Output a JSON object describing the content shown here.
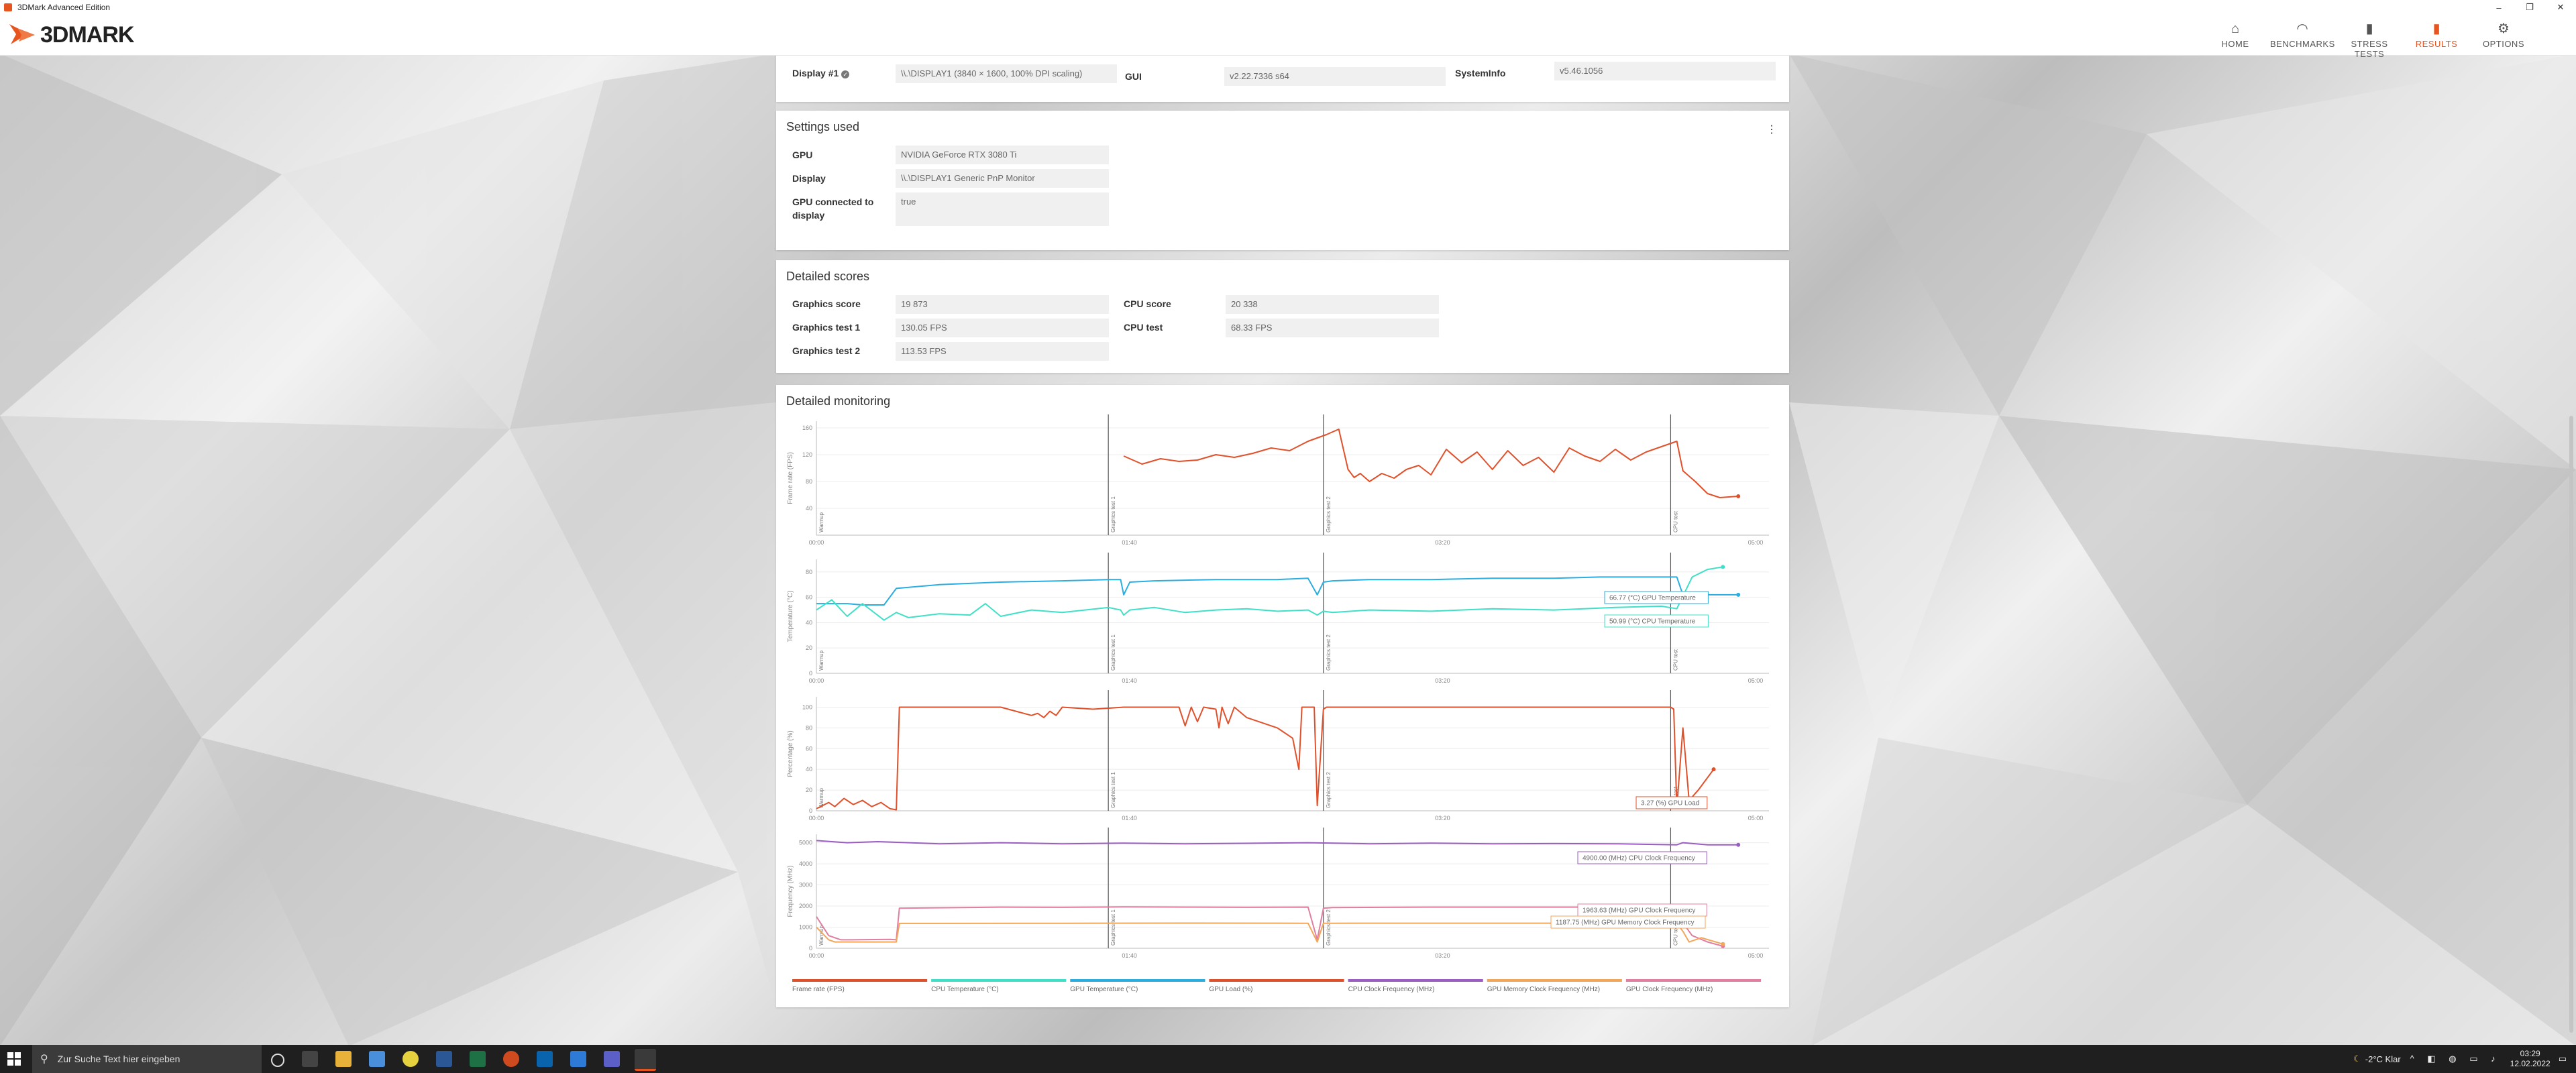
{
  "window": {
    "title": "3DMark Advanced Edition",
    "minimize": "–",
    "maximize": "❐",
    "close": "✕"
  },
  "header": {
    "logo_text": "3DMARK",
    "nav": [
      {
        "label": "HOME",
        "icon": "⌂",
        "icon_name": "home-icon"
      },
      {
        "label": "BENCHMARKS",
        "icon": "◠",
        "icon_name": "gauge-icon"
      },
      {
        "label": "STRESS TESTS",
        "icon": "▮",
        "icon_name": "bars-icon"
      },
      {
        "label": "RESULTS",
        "icon": "▮",
        "icon_name": "results-icon",
        "active": true
      },
      {
        "label": "OPTIONS",
        "icon": "⚙",
        "icon_name": "gear-icon"
      }
    ],
    "accent_color": "#e8541e"
  },
  "system_info": {
    "display_label": "Display #1",
    "display_value": "\\\\.\\DISPLAY1 (3840 × 1600, 100% DPI scaling)",
    "gui_label": "GUI",
    "gui_value": "v2.22.7336 s64",
    "sysinfo_label": "SystemInfo",
    "sysinfo_value": "v5.46.1056"
  },
  "settings_used": {
    "title": "Settings used",
    "gpu_label": "GPU",
    "gpu_value": "NVIDIA GeForce RTX 3080 Ti",
    "display_label": "Display",
    "display_value": "\\\\.\\DISPLAY1 Generic PnP Monitor",
    "gpu_connected_label": "GPU connected to display",
    "gpu_connected_value": "true"
  },
  "detailed_scores": {
    "title": "Detailed scores",
    "graphics_score_label": "Graphics score",
    "graphics_score_value": "19 873",
    "graphics_test1_label": "Graphics test 1",
    "graphics_test1_value": "130.05 FPS",
    "graphics_test2_label": "Graphics test 2",
    "graphics_test2_value": "113.53 FPS",
    "cpu_score_label": "CPU score",
    "cpu_score_value": "20 338",
    "cpu_test_label": "CPU test",
    "cpu_test_value": "68.33 FPS"
  },
  "monitoring": {
    "title": "Detailed monitoring",
    "markers": [
      "Warmup",
      "Graphics test 1",
      "Graphics test 2",
      "CPU test"
    ],
    "time_ticks": [
      "00:00",
      "01:40",
      "03:20",
      "05:00"
    ],
    "tooltips": {
      "gpu_temp": "66.77 (°C) GPU Temperature",
      "cpu_temp": "50.99 (°C) CPU Temperature",
      "gpu_load": "3.27 (%) GPU Load",
      "cpu_clock": "4900.00 (MHz) CPU Clock Frequency",
      "gpu_clock": "1963.63 (MHz) GPU Clock Frequency",
      "gpu_mem_clock": "1187.75 (MHz) GPU Memory Clock Frequency"
    },
    "legend": [
      {
        "label": "Frame rate (FPS)",
        "color": "#e0502a"
      },
      {
        "label": "CPU Temperature (°C)",
        "color": "#3ee0c7"
      },
      {
        "label": "GPU Temperature (°C)",
        "color": "#2aaee0"
      },
      {
        "label": "GPU Load (%)",
        "color": "#e0502a"
      },
      {
        "label": "CPU Clock Frequency (MHz)",
        "color": "#9b5cc4"
      },
      {
        "label": "GPU Memory Clock Frequency (MHz)",
        "color": "#f2a65a"
      },
      {
        "label": "GPU Clock Frequency (MHz)",
        "color": "#e07fa0"
      }
    ]
  },
  "chart_data": [
    {
      "type": "line",
      "ylabel": "Frame rate (FPS)",
      "yticks": [
        "40",
        "80",
        "120",
        "160"
      ],
      "ylim": [
        0,
        170
      ],
      "xlim": [
        0,
        310
      ],
      "grid": true,
      "series": [
        {
          "name": "Frame rate (FPS)",
          "color": "#e0502a",
          "x": [
            0,
            95,
            97,
            100,
            106,
            112,
            118,
            124,
            130,
            136,
            142,
            148,
            154,
            160,
            166,
            170,
            173,
            175,
            177,
            180,
            184,
            188,
            192,
            196,
            200,
            205,
            210,
            215,
            220,
            225,
            230,
            235,
            240,
            245,
            250,
            255,
            260,
            265,
            270,
            275,
            280,
            282,
            286,
            290,
            294,
            300
          ],
          "y": [
            null,
            null,
            null,
            118,
            106,
            114,
            110,
            112,
            120,
            116,
            122,
            130,
            126,
            140,
            150,
            158,
            98,
            86,
            92,
            80,
            92,
            85,
            98,
            104,
            90,
            128,
            108,
            124,
            98,
            126,
            104,
            116,
            94,
            130,
            118,
            110,
            128,
            112,
            124,
            132,
            140,
            96,
            80,
            62,
            56,
            58
          ]
        }
      ]
    },
    {
      "type": "line",
      "ylabel": "Temperature (°C)",
      "yticks": [
        "0",
        "20",
        "40",
        "60",
        "80"
      ],
      "ylim": [
        0,
        90
      ],
      "xlim": [
        0,
        310
      ],
      "grid": true,
      "series": [
        {
          "name": "GPU Temperature (°C)",
          "color": "#2aaee0",
          "x": [
            0,
            10,
            15,
            22,
            26,
            40,
            60,
            80,
            95,
            99,
            100,
            102,
            110,
            130,
            150,
            160,
            163,
            165,
            168,
            180,
            200,
            220,
            240,
            255,
            275,
            280,
            282,
            290,
            300
          ],
          "y": [
            55,
            55,
            54,
            54,
            67,
            70,
            72,
            73,
            74,
            74,
            62,
            72,
            73,
            74,
            74,
            75,
            62,
            72,
            73,
            74,
            74,
            75,
            75,
            76,
            76,
            76,
            62,
            62,
            62
          ]
        },
        {
          "name": "CPU Temperature (°C)",
          "color": "#3ee0c7",
          "x": [
            0,
            5,
            10,
            15,
            22,
            26,
            30,
            40,
            50,
            55,
            60,
            70,
            80,
            95,
            99,
            100,
            102,
            110,
            120,
            130,
            140,
            150,
            160,
            163,
            165,
            168,
            180,
            200,
            220,
            240,
            260,
            275,
            280,
            285,
            290,
            295
          ],
          "y": [
            50,
            58,
            45,
            55,
            42,
            48,
            44,
            47,
            46,
            55,
            45,
            50,
            48,
            52,
            50,
            46,
            50,
            52,
            48,
            50,
            51,
            49,
            50,
            46,
            49,
            48,
            50,
            49,
            51,
            50,
            52,
            53,
            51,
            76,
            82,
            84
          ]
        }
      ]
    },
    {
      "type": "line",
      "ylabel": "Percentage (%)",
      "yticks": [
        "0",
        "20",
        "40",
        "60",
        "80",
        "100"
      ],
      "ylim": [
        0,
        110
      ],
      "xlim": [
        0,
        310
      ],
      "grid": true,
      "series": [
        {
          "name": "GPU Load (%)",
          "color": "#e0502a",
          "x": [
            0,
            4,
            6,
            9,
            12,
            15,
            18,
            21,
            24,
            26,
            27,
            28,
            40,
            60,
            70,
            72,
            74,
            76,
            78,
            80,
            90,
            100,
            118,
            120,
            122,
            124,
            126,
            130,
            131,
            132,
            134,
            136,
            140,
            150,
            155,
            157,
            158,
            160,
            162,
            163,
            165,
            166,
            170,
            190,
            200,
            220,
            240,
            250,
            270,
            278,
            279,
            280,
            282,
            284,
            287,
            292
          ],
          "y": [
            2,
            8,
            4,
            12,
            6,
            10,
            4,
            8,
            2,
            1,
            100,
            100,
            100,
            100,
            92,
            94,
            90,
            96,
            92,
            100,
            98,
            100,
            100,
            82,
            100,
            86,
            100,
            98,
            80,
            100,
            84,
            100,
            90,
            80,
            70,
            40,
            100,
            100,
            100,
            5,
            98,
            100,
            100,
            100,
            100,
            100,
            100,
            100,
            100,
            100,
            98,
            3,
            80,
            10,
            20,
            40
          ]
        }
      ]
    },
    {
      "type": "line",
      "ylabel": "Frequency (MHz)",
      "yticks": [
        "0",
        "1000",
        "2000",
        "3000",
        "4000",
        "5000"
      ],
      "ylim": [
        0,
        5400
      ],
      "xlim": [
        0,
        310
      ],
      "grid": true,
      "series": [
        {
          "name": "CPU Clock Frequency (MHz)",
          "color": "#9b5cc4",
          "x": [
            0,
            10,
            20,
            40,
            60,
            80,
            100,
            120,
            140,
            160,
            180,
            200,
            220,
            240,
            260,
            280,
            282,
            290,
            300
          ],
          "y": [
            5100,
            5000,
            5050,
            4950,
            5000,
            4950,
            4980,
            4950,
            4970,
            5000,
            4950,
            4980,
            4950,
            4960,
            4950,
            4900,
            5000,
            4900,
            4900
          ]
        },
        {
          "name": "GPU Clock Frequency (MHz)",
          "color": "#e07fa0",
          "x": [
            0,
            4,
            6,
            8,
            10,
            24,
            26,
            27,
            40,
            60,
            80,
            100,
            120,
            140,
            160,
            163,
            165,
            168,
            200,
            240,
            270,
            280,
            282,
            285,
            290,
            295
          ],
          "y": [
            1500,
            600,
            500,
            400,
            400,
            420,
            400,
            1900,
            1920,
            1950,
            1940,
            1960,
            1950,
            1940,
            1950,
            400,
            1900,
            1930,
            1950,
            1950,
            1950,
            1963,
            1200,
            600,
            300,
            100
          ]
        },
        {
          "name": "GPU Memory Clock Frequency (MHz)",
          "color": "#f2a65a",
          "x": [
            0,
            4,
            6,
            10,
            24,
            26,
            27,
            40,
            80,
            120,
            160,
            163,
            165,
            200,
            240,
            280,
            282,
            284,
            288,
            295
          ],
          "y": [
            1000,
            400,
            300,
            300,
            300,
            300,
            1180,
            1180,
            1185,
            1190,
            1185,
            300,
            1185,
            1187,
            1187,
            1188,
            800,
            300,
            500,
            200
          ]
        }
      ]
    }
  ],
  "taskbar": {
    "search_placeholder": "Zur Suche Text hier eingeben",
    "weather": "-2°C  Klar",
    "time": "03:29",
    "date": "12.02.2022"
  }
}
